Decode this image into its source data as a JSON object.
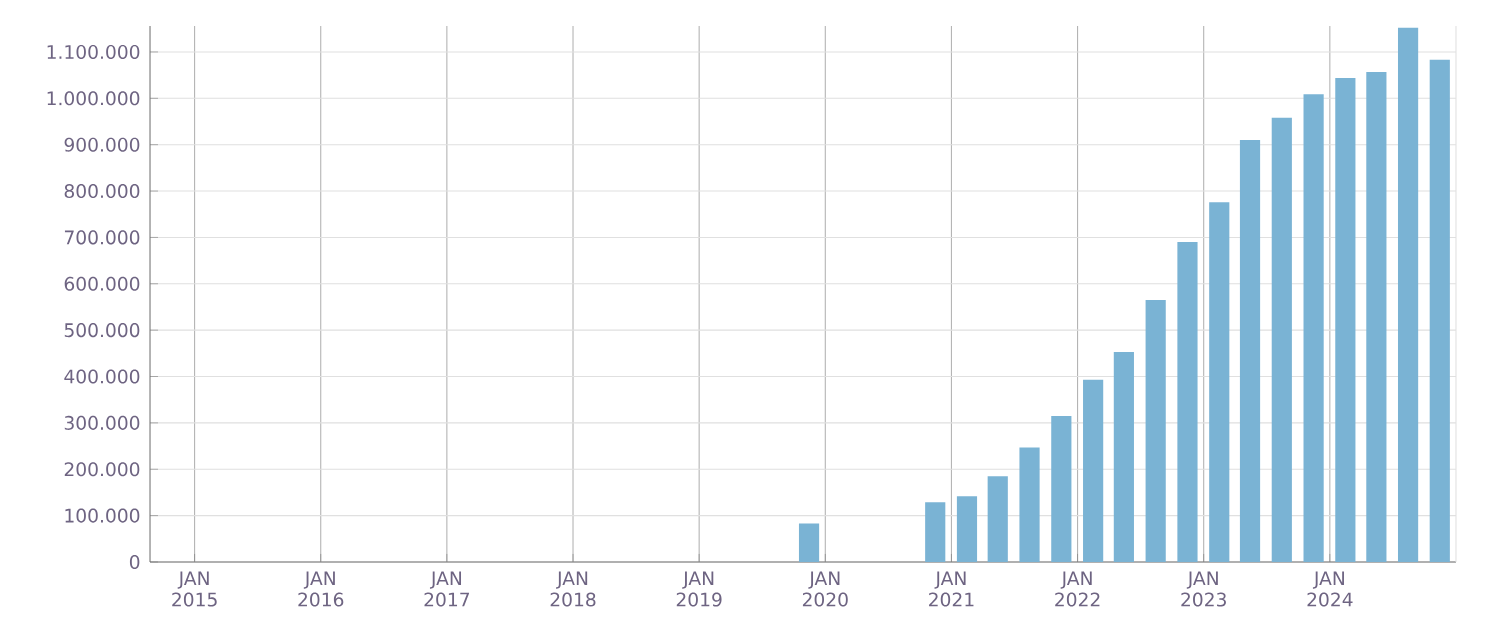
{
  "chart_data": {
    "type": "bar",
    "x": [
      "2019-11-15",
      "2020-11-15",
      "2021-02-15",
      "2021-05-15",
      "2021-08-15",
      "2021-11-15",
      "2022-02-15",
      "2022-05-15",
      "2022-08-15",
      "2022-11-15",
      "2023-02-15",
      "2023-05-15",
      "2023-08-15",
      "2023-11-15",
      "2024-02-15",
      "2024-05-15",
      "2024-08-15",
      "2024-11-15"
    ],
    "values": [
      83000,
      129000,
      142000,
      185000,
      247000,
      315000,
      393000,
      453000,
      565000,
      690000,
      776000,
      910000,
      958000,
      1009000,
      1044000,
      1057000,
      1152000,
      1083000
    ],
    "color": "#7ab3d4",
    "xlim": [
      "2014-08-25",
      "2025-01-01"
    ],
    "ylim": [
      0,
      1156000
    ],
    "xticks": [
      {
        "value": "2015-01-01",
        "label": "JAN 2015"
      },
      {
        "value": "2016-01-01",
        "label": "JAN 2016"
      },
      {
        "value": "2017-01-01",
        "label": "JAN 2017"
      },
      {
        "value": "2018-01-01",
        "label": "JAN 2018"
      },
      {
        "value": "2019-01-01",
        "label": "JAN 2019"
      },
      {
        "value": "2020-01-01",
        "label": "JAN 2020"
      },
      {
        "value": "2021-01-01",
        "label": "JAN 2021"
      },
      {
        "value": "2022-01-01",
        "label": "JAN 2022"
      },
      {
        "value": "2023-01-01",
        "label": "JAN 2023"
      },
      {
        "value": "2024-01-01",
        "label": "JAN 2024"
      }
    ],
    "yticks": [
      {
        "value": 0,
        "label": "0"
      },
      {
        "value": 100000,
        "label": "100.000"
      },
      {
        "value": 200000,
        "label": "200.000"
      },
      {
        "value": 300000,
        "label": "300.000"
      },
      {
        "value": 400000,
        "label": "400.000"
      },
      {
        "value": 500000,
        "label": "500.000"
      },
      {
        "value": 600000,
        "label": "600.000"
      },
      {
        "value": 700000,
        "label": "700.000"
      },
      {
        "value": 800000,
        "label": "800.000"
      },
      {
        "value": 900000,
        "label": "900.000"
      },
      {
        "value": 1000000,
        "label": "1.000.000"
      },
      {
        "value": 1100000,
        "label": "1.100.000"
      }
    ],
    "grid": true
  }
}
